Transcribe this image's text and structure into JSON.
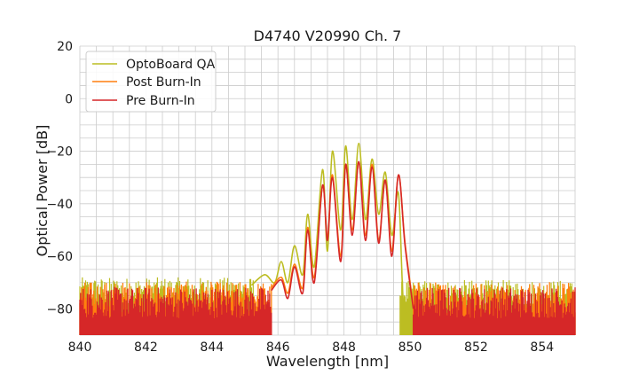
{
  "chart_data": {
    "type": "line",
    "title": "D4740 V20990 Ch. 7",
    "xlabel": "Wavelength [nm]",
    "ylabel": "Optical Power [dB]",
    "xlim": [
      840,
      855
    ],
    "ylim": [
      -90,
      20
    ],
    "x_ticks": [
      840,
      842,
      844,
      846,
      848,
      850,
      852,
      854
    ],
    "y_ticks": [
      20,
      0,
      -20,
      -40,
      -60,
      -80
    ],
    "x_tick_labels": [
      "840",
      "842",
      "844",
      "846",
      "848",
      "850",
      "852",
      "854"
    ],
    "y_tick_labels": [
      "20",
      "0",
      "−20",
      "−40",
      "−60",
      "−80"
    ],
    "grid": true,
    "legend_position": "upper-left",
    "noise_floor_db": -78,
    "series": [
      {
        "name": "OptoBoard QA",
        "color": "#bcbd22",
        "x": [
          845.2,
          845.6,
          845.9,
          846.1,
          846.3,
          846.5,
          846.75,
          846.9,
          847.1,
          847.35,
          847.5,
          847.65,
          847.9,
          848.05,
          848.25,
          848.45,
          848.65,
          848.85,
          849.05,
          849.25,
          849.45,
          849.65,
          849.8,
          850.0
        ],
        "y": [
          -71,
          -67,
          -70,
          -62,
          -70,
          -56,
          -67,
          -44,
          -64,
          -27,
          -58,
          -20,
          -50,
          -18,
          -46,
          -17,
          -46,
          -23,
          -44,
          -28,
          -52,
          -36,
          -78,
          -80
        ]
      },
      {
        "name": "Post Burn-In",
        "color": "#ff7f0e",
        "x": [
          845.8,
          846.1,
          846.3,
          846.5,
          846.75,
          846.9,
          847.1,
          847.35,
          847.5,
          847.65,
          847.9,
          848.05,
          848.25,
          848.45,
          848.65,
          848.85,
          849.05,
          849.25,
          849.45,
          849.65,
          849.85,
          850.1
        ],
        "y": [
          -72,
          -68,
          -74,
          -63,
          -72,
          -49,
          -68,
          -33,
          -53,
          -29,
          -60,
          -25,
          -50,
          -24,
          -52,
          -25,
          -54,
          -31,
          -58,
          -29,
          -55,
          -79
        ]
      },
      {
        "name": "Pre Burn-In",
        "color": "#d62728",
        "x": [
          845.8,
          846.1,
          846.3,
          846.5,
          846.75,
          846.9,
          847.1,
          847.35,
          847.5,
          847.65,
          847.9,
          848.05,
          848.25,
          848.45,
          848.65,
          848.85,
          849.05,
          849.25,
          849.45,
          849.65,
          849.85,
          850.1
        ],
        "y": [
          -73,
          -69,
          -76,
          -64,
          -74,
          -50,
          -70,
          -33,
          -54,
          -30,
          -62,
          -25,
          -52,
          -24,
          -54,
          -26,
          -55,
          -31,
          -60,
          -29,
          -56,
          -80
        ]
      }
    ]
  }
}
